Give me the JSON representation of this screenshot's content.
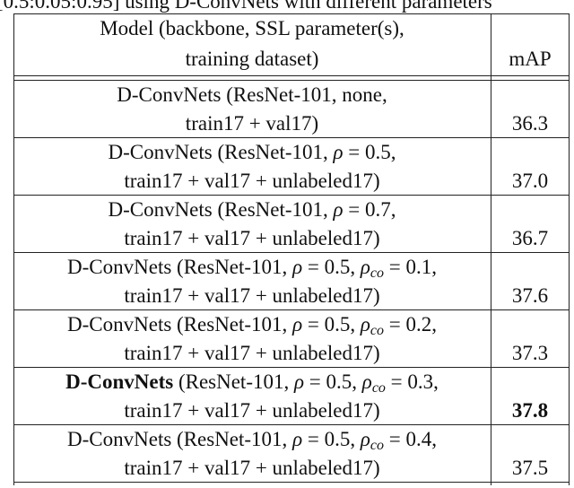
{
  "caption": "[0.5:0.05:0.95] using D-ConvNets with different parameters",
  "table": {
    "header": {
      "model": [
        "Model (backbone, SSL parameter(s),",
        "training dataset)"
      ],
      "map": "mAP"
    },
    "rows": [
      {
        "lines": [
          [
            {
              "text": "D-ConvNets (ResNet-101, none,"
            }
          ],
          [
            {
              "text": "train17 + val17)"
            }
          ]
        ],
        "map": "36.3"
      },
      {
        "lines": [
          [
            {
              "text": "D-ConvNets (ResNet-101, "
            },
            {
              "text": "ρ",
              "italic": true
            },
            {
              "text": " = 0.5,"
            }
          ],
          [
            {
              "text": "train17 + val17 + unlabeled17)"
            }
          ]
        ],
        "map": "37.0"
      },
      {
        "lines": [
          [
            {
              "text": "D-ConvNets (ResNet-101, "
            },
            {
              "text": "ρ",
              "italic": true
            },
            {
              "text": " = 0.7,"
            }
          ],
          [
            {
              "text": "train17 + val17 + unlabeled17)"
            }
          ]
        ],
        "map": "36.7"
      },
      {
        "lines": [
          [
            {
              "text": "D-ConvNets (ResNet-101, "
            },
            {
              "text": "ρ",
              "italic": true
            },
            {
              "text": " = 0.5, "
            },
            {
              "text": "ρ",
              "italic": true
            },
            {
              "text": "co",
              "sub": true
            },
            {
              "text": " = 0.1,"
            }
          ],
          [
            {
              "text": "train17 + val17 + unlabeled17)"
            }
          ]
        ],
        "map": "37.6"
      },
      {
        "lines": [
          [
            {
              "text": "D-ConvNets (ResNet-101, "
            },
            {
              "text": "ρ",
              "italic": true
            },
            {
              "text": " = 0.5, "
            },
            {
              "text": "ρ",
              "italic": true
            },
            {
              "text": "co",
              "sub": true
            },
            {
              "text": " = 0.2,"
            }
          ],
          [
            {
              "text": "train17 + val17 + unlabeled17)"
            }
          ]
        ],
        "map": "37.3"
      },
      {
        "lines": [
          [
            {
              "text": "D-ConvNets",
              "bold": true
            },
            {
              "text": " (ResNet-101, "
            },
            {
              "text": "ρ",
              "italic": true
            },
            {
              "text": " = 0.5, "
            },
            {
              "text": "ρ",
              "italic": true
            },
            {
              "text": "co",
              "sub": true
            },
            {
              "text": " = 0.3,"
            }
          ],
          [
            {
              "text": "train17 + val17 + unlabeled17)"
            }
          ]
        ],
        "map": "37.8",
        "map_bold": true
      },
      {
        "lines": [
          [
            {
              "text": "D-ConvNets (ResNet-101, "
            },
            {
              "text": "ρ",
              "italic": true
            },
            {
              "text": " = 0.5, "
            },
            {
              "text": "ρ",
              "italic": true
            },
            {
              "text": "co",
              "sub": true
            },
            {
              "text": " = 0.4,"
            }
          ],
          [
            {
              "text": "train17 + val17 + unlabeled17)"
            }
          ]
        ],
        "map": "37.5"
      }
    ]
  }
}
